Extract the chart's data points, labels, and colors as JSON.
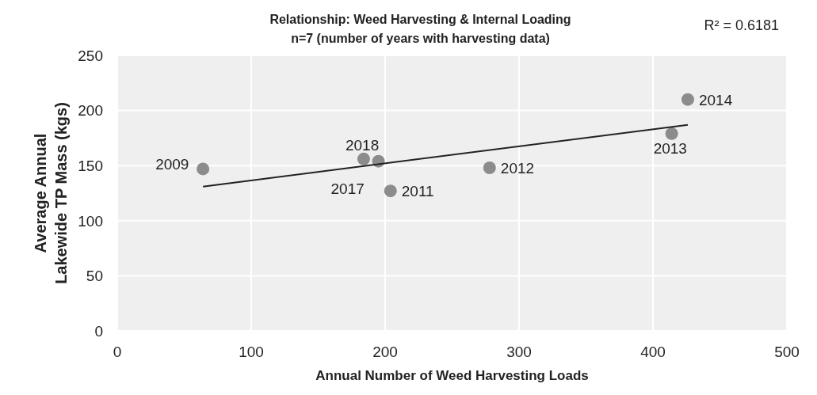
{
  "chart_data": {
    "type": "scatter",
    "title": "Relationship: Weed Harvesting & Internal Loading",
    "subtitle": "n=7 (number of years with harvesting data)",
    "xlabel": "Annual Number of Weed Harvesting Loads",
    "ylabel": "Average Annual Lakewide TP Mass (kgs)",
    "annotations": [
      "R² = 0.6181",
      {
        "text": "2009",
        "x": 64,
        "y": 147
      },
      {
        "text": "2018",
        "x": 184,
        "y": 156
      },
      {
        "text": "2017",
        "x": 195,
        "y": 154
      },
      {
        "text": "2011",
        "x": 204,
        "y": 127
      },
      {
        "text": "2012",
        "x": 278,
        "y": 148
      },
      {
        "text": "2013",
        "x": 414,
        "y": 179
      },
      {
        "text": "2014",
        "x": 426,
        "y": 210
      }
    ],
    "series": [
      {
        "type": "scatter",
        "color": "#8c8c8c",
        "x": [
          64,
          184,
          195,
          204,
          278,
          414,
          426
        ],
        "values": [
          147,
          156,
          154,
          127,
          148,
          179,
          210
        ]
      },
      {
        "type": "line",
        "marker": "none",
        "color": "#222222",
        "x": [
          64,
          426
        ],
        "values": [
          131,
          187
        ]
      }
    ],
    "xlim": [
      0,
      500
    ],
    "xticks": [
      0,
      100,
      200,
      300,
      400,
      500
    ],
    "ylim": [
      0,
      250
    ],
    "yticks": [
      0,
      50,
      100,
      150,
      200,
      250
    ],
    "grid": true,
    "legend": false,
    "marker": "circle",
    "line_style": "solid"
  }
}
